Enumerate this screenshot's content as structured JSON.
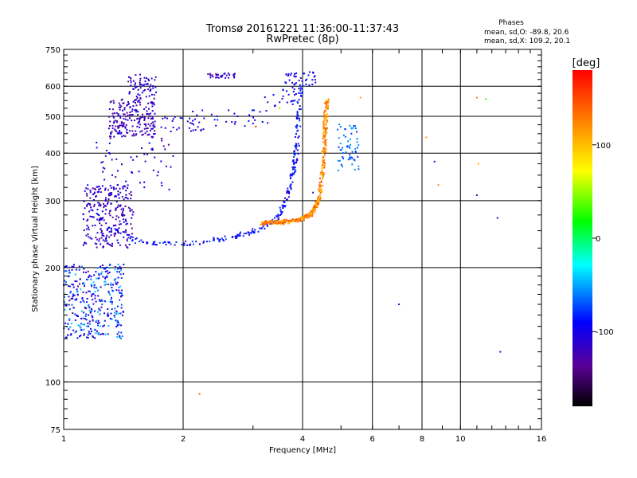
{
  "chart_data": {
    "type": "scatter",
    "title_line1": "Tromsø 20161221 11:36:00-11:37:43",
    "title_line2": "RwPretec (8p)",
    "phases": {
      "title": "Phases",
      "line_o": "mean, sd,O: -89.8, 20.6",
      "line_x": "mean, sd,X: 109.2, 20.1"
    },
    "xlabel": "Frequency [MHz]",
    "ylabel": "Stationary phase Virtual Height [km]",
    "x_scale": "log",
    "y_scale": "log",
    "xlim": [
      1,
      16
    ],
    "ylim": [
      75,
      750
    ],
    "x_ticks": [
      1,
      2,
      4,
      6,
      8,
      10,
      16
    ],
    "y_ticks": [
      75,
      100,
      200,
      300,
      400,
      500,
      600,
      750
    ],
    "grid": true,
    "colorbar": {
      "label": "[deg]",
      "range": [
        -180,
        180
      ],
      "ticks": [
        100,
        0,
        -100
      ]
    },
    "clusters": [
      {
        "f": [
          1.0,
          1.42
        ],
        "h": [
          130,
          205
        ],
        "phase": [
          -130,
          -40
        ],
        "n": 360
      },
      {
        "f": [
          1.12,
          1.5
        ],
        "h": [
          225,
          330
        ],
        "phase": [
          -140,
          -90
        ],
        "n": 260
      },
      {
        "f": [
          1.3,
          1.7
        ],
        "h": [
          440,
          560
        ],
        "phase": [
          -140,
          -100
        ],
        "n": 210
      },
      {
        "f": [
          1.45,
          1.72
        ],
        "h": [
          560,
          645
        ],
        "phase": [
          -130,
          -95
        ],
        "n": 60
      },
      {
        "f": [
          1.2,
          1.9
        ],
        "h": [
          320,
          440
        ],
        "phase": [
          -135,
          -90
        ],
        "n": 55
      },
      {
        "f": [
          1.75,
          2.3
        ],
        "h": [
          455,
          500
        ],
        "phase": [
          -120,
          -90
        ],
        "n": 30
      },
      {
        "f": [
          2.3,
          2.7
        ],
        "h": [
          630,
          650
        ],
        "phase": [
          -130,
          -100
        ],
        "n": 30
      },
      {
        "f": [
          2.1,
          3.3
        ],
        "h": [
          470,
          520
        ],
        "phase": [
          -120,
          -80
        ],
        "n": 28
      },
      {
        "f": [
          3.6,
          4.4
        ],
        "h": [
          600,
          655
        ],
        "phase": [
          -120,
          -80
        ],
        "n": 40
      },
      {
        "f": [
          3.2,
          4.0
        ],
        "h": [
          530,
          600
        ],
        "phase": [
          -125,
          -85
        ],
        "n": 25
      },
      {
        "f": [
          4.9,
          5.55
        ],
        "h": [
          360,
          480
        ],
        "phase": [
          -80,
          -50
        ],
        "n": 60
      }
    ],
    "traces": [
      {
        "f": [
          1.3,
          1.55,
          1.9,
          2.3,
          2.7,
          3.1,
          3.4,
          3.6,
          3.75,
          3.85,
          3.9,
          3.95
        ],
        "h": [
          255,
          233,
          230,
          234,
          241,
          252,
          265,
          290,
          330,
          400,
          470,
          600
        ],
        "spread": 0.014,
        "phase": [
          -110,
          -70
        ],
        "n": 260
      },
      {
        "f": [
          3.15,
          3.5,
          3.9,
          4.2,
          4.4,
          4.5,
          4.55,
          4.6
        ],
        "h": [
          262,
          263,
          266,
          276,
          300,
          360,
          440,
          560
        ],
        "spread": 0.012,
        "phase": [
          95,
          150
        ],
        "n": 430
      }
    ],
    "outliers": [
      {
        "f": 7.0,
        "h": 160,
        "phase": -105
      },
      {
        "f": 8.6,
        "h": 380,
        "phase": -100
      },
      {
        "f": 8.2,
        "h": 440,
        "phase": 115
      },
      {
        "f": 8.8,
        "h": 330,
        "phase": 120
      },
      {
        "f": 11.0,
        "h": 560,
        "phase": 130
      },
      {
        "f": 11.6,
        "h": 555,
        "phase": 30
      },
      {
        "f": 11.1,
        "h": 375,
        "phase": 105
      },
      {
        "f": 11.0,
        "h": 310,
        "phase": -125
      },
      {
        "f": 12.4,
        "h": 270,
        "phase": -115
      },
      {
        "f": 12.6,
        "h": 120,
        "phase": -110
      },
      {
        "f": 2.2,
        "h": 93,
        "phase": 140
      },
      {
        "f": 3.05,
        "h": 470,
        "phase": 160
      },
      {
        "f": 4.25,
        "h": 315,
        "phase": -120
      },
      {
        "f": 5.6,
        "h": 560,
        "phase": 110
      },
      {
        "f": 3.5,
        "h": 525,
        "phase": 45
      }
    ]
  }
}
